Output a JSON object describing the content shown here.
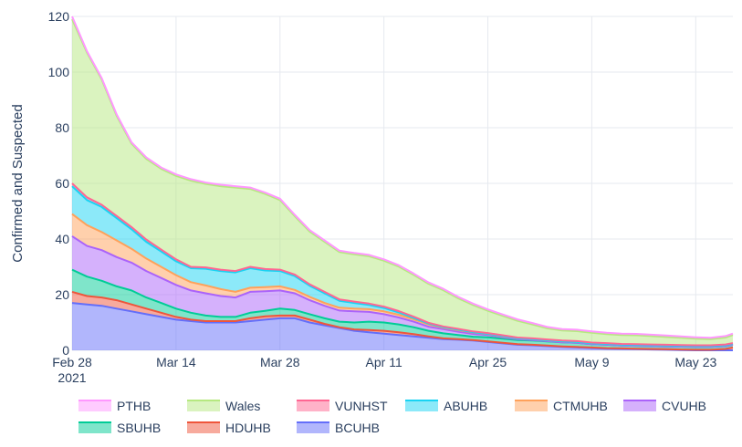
{
  "chart_data": {
    "type": "area",
    "stacked": true,
    "ylabel": "Confirmed and Suspected",
    "xlabel": "",
    "ylim": [
      0,
      120
    ],
    "yticks": [
      0,
      20,
      40,
      60,
      80,
      100,
      120
    ],
    "xlim": [
      "2021-02-28",
      "2021-05-28"
    ],
    "xticks": [
      {
        "date": "2021-02-28",
        "label": "Feb 28",
        "sublabel": "2021"
      },
      {
        "date": "2021-03-14",
        "label": "Mar 14",
        "sublabel": ""
      },
      {
        "date": "2021-03-28",
        "label": "Mar 28",
        "sublabel": ""
      },
      {
        "date": "2021-04-11",
        "label": "Apr 11",
        "sublabel": ""
      },
      {
        "date": "2021-04-25",
        "label": "Apr 25",
        "sublabel": ""
      },
      {
        "date": "2021-05-09",
        "label": "May 9",
        "sublabel": ""
      },
      {
        "date": "2021-05-23",
        "label": "May 23",
        "sublabel": ""
      }
    ],
    "grid": true,
    "legend_position": "bottom",
    "dates": [
      "2021-02-28",
      "2021-03-02",
      "2021-03-04",
      "2021-03-06",
      "2021-03-08",
      "2021-03-10",
      "2021-03-12",
      "2021-03-14",
      "2021-03-16",
      "2021-03-18",
      "2021-03-20",
      "2021-03-22",
      "2021-03-24",
      "2021-03-26",
      "2021-03-28",
      "2021-03-30",
      "2021-04-01",
      "2021-04-03",
      "2021-04-05",
      "2021-04-07",
      "2021-04-09",
      "2021-04-11",
      "2021-04-13",
      "2021-04-15",
      "2021-04-17",
      "2021-04-19",
      "2021-04-21",
      "2021-04-23",
      "2021-04-25",
      "2021-04-27",
      "2021-04-29",
      "2021-05-01",
      "2021-05-03",
      "2021-05-05",
      "2021-05-07",
      "2021-05-09",
      "2021-05-11",
      "2021-05-13",
      "2021-05-15",
      "2021-05-17",
      "2021-05-19",
      "2021-05-21",
      "2021-05-23",
      "2021-05-25",
      "2021-05-27",
      "2021-05-28"
    ],
    "series": [
      {
        "name": "BCUHB",
        "color": "#636efa",
        "values": [
          17,
          16.5,
          16,
          15,
          14,
          13,
          12,
          11,
          10.5,
          10,
          10,
          10,
          10.5,
          11,
          11.5,
          11.5,
          10,
          9,
          8,
          7,
          6.5,
          6,
          5.5,
          5,
          4.5,
          4,
          3.8,
          3.5,
          3,
          2.5,
          2,
          1.8,
          1.5,
          1.2,
          1,
          0.8,
          0.6,
          0.5,
          0.4,
          0.3,
          0.2,
          0.1,
          0,
          0,
          0,
          0
        ]
      },
      {
        "name": "HDUHB",
        "color": "#ef553b",
        "values": [
          4,
          3,
          3,
          3,
          2.5,
          2,
          1.5,
          1,
          0.5,
          0.5,
          0.5,
          0.5,
          1,
          1.2,
          1,
          1,
          1,
          0.5,
          0.3,
          0.5,
          0.8,
          1,
          1,
          0.8,
          0.5,
          0.3,
          0.2,
          0.2,
          0.2,
          0.2,
          0.2,
          0.2,
          0.2,
          0.2,
          0.2,
          0.2,
          0.2,
          0.2,
          0.2,
          0.2,
          0.2,
          0.2,
          0.2,
          0.2,
          0.5,
          1
        ]
      },
      {
        "name": "SBUHB",
        "color": "#00cc96",
        "values": [
          8,
          7,
          6,
          5,
          5,
          4,
          3.5,
          3,
          2.5,
          2,
          1.5,
          1.5,
          2,
          2,
          2.5,
          2,
          2,
          2,
          2,
          2.5,
          3,
          3,
          2.8,
          2.5,
          2,
          1.8,
          1.5,
          1.2,
          1.5,
          1.5,
          1.5,
          1.5,
          1.5,
          1.5,
          1.5,
          1.2,
          1.2,
          1,
          1,
          1,
          1,
          1,
          1,
          1,
          1,
          1
        ]
      },
      {
        "name": "CVUHB",
        "color": "#ab63fa",
        "values": [
          12,
          11,
          11,
          10.5,
          10,
          9.5,
          9,
          8.5,
          8,
          8,
          7.5,
          7,
          7.5,
          7,
          6.5,
          6,
          5,
          4.5,
          4,
          4,
          3.5,
          3,
          2.5,
          2,
          1.5,
          1.5,
          1.2,
          1,
          0.8,
          0.5,
          0.3,
          0.2,
          0.1,
          0,
          0,
          0,
          0,
          0,
          0,
          0,
          0,
          0,
          0,
          0,
          0,
          0
        ]
      },
      {
        "name": "CTMUHB",
        "color": "#ffa15a",
        "values": [
          8,
          7.5,
          6.5,
          6,
          5,
          4.5,
          4,
          3.5,
          3,
          2.8,
          2.5,
          2,
          1.5,
          1.5,
          1.5,
          1.2,
          1.2,
          1,
          1,
          1,
          1,
          1,
          1,
          0.8,
          0.8,
          0.5,
          0.5,
          0.5,
          0.3,
          0.3,
          0.3,
          0.3,
          0.3,
          0.3,
          0.3,
          0.3,
          0.3,
          0.3,
          0.3,
          0.3,
          0.3,
          0.3,
          0.3,
          0.3,
          0.3,
          0.3
        ]
      },
      {
        "name": "ABUHB",
        "color": "#19d3f3",
        "values": [
          10,
          9,
          9,
          8,
          7,
          6,
          5.5,
          5,
          5,
          6,
          6.5,
          7,
          7,
          6,
          5.5,
          5,
          4,
          3.5,
          2.5,
          2,
          1.5,
          1.2,
          0.8,
          0.5,
          0.3,
          0.2,
          0.2,
          0.1,
          0.1,
          0.1,
          0,
          0,
          0,
          0,
          0,
          0,
          0,
          0,
          0,
          0,
          0,
          0,
          0,
          0,
          0,
          0
        ]
      },
      {
        "name": "VUNHST",
        "color": "#ff6692",
        "values": [
          1,
          1,
          0.8,
          0.8,
          0.8,
          0.8,
          0.7,
          0.7,
          0.5,
          0.5,
          0.5,
          0.5,
          0.5,
          0.5,
          0.5,
          0.5,
          0.5,
          0.5,
          0.5,
          0.5,
          0.5,
          0.5,
          0.5,
          0.5,
          0.3,
          0.3,
          0.3,
          0.3,
          0.3,
          0.3,
          0.3,
          0.3,
          0.3,
          0.3,
          0.3,
          0.3,
          0.3,
          0.3,
          0.3,
          0.3,
          0.3,
          0.3,
          0.3,
          0.3,
          0.3,
          0.3
        ]
      },
      {
        "name": "Wales",
        "color": "#b6e880",
        "values": [
          59,
          52,
          45,
          36,
          30,
          29,
          29,
          30,
          31,
          30,
          30,
          30,
          28,
          27,
          25,
          21,
          19,
          18,
          17,
          17,
          17,
          16.5,
          16,
          15,
          14,
          13,
          11,
          9.5,
          8,
          7,
          6,
          5,
          4,
          3.6,
          3.6,
          3.5,
          3.2,
          3.2,
          3.2,
          3,
          2.8,
          2.6,
          2.4,
          2.2,
          2.5,
          2.9
        ]
      },
      {
        "name": "PTHB",
        "color": "#ff97ff",
        "values": [
          1,
          0.5,
          0.5,
          0.5,
          0.5,
          0.5,
          0.5,
          0.5,
          0.5,
          0.5,
          0.5,
          0.5,
          0.5,
          0.5,
          0.5,
          0.5,
          0.5,
          0.5,
          0.5,
          0.5,
          0.5,
          0.5,
          0.5,
          0.5,
          0.5,
          0.5,
          0.5,
          0.5,
          0.5,
          0.5,
          0.5,
          0.5,
          0.5,
          0.5,
          0.5,
          0.5,
          0.5,
          0.5,
          0.5,
          0.5,
          0.5,
          0.5,
          0.5,
          0.5,
          0.5,
          0.5
        ]
      }
    ],
    "legend_order": [
      "PTHB",
      "Wales",
      "VUNHST",
      "ABUHB",
      "CTMUHB",
      "CVUHB",
      "SBUHB",
      "HDUHB",
      "BCUHB"
    ]
  }
}
